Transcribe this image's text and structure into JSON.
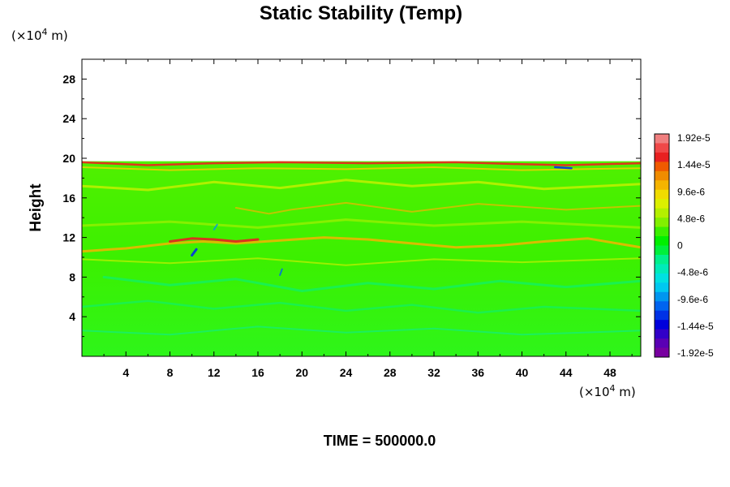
{
  "chart_data": {
    "type": "heatmap",
    "title": "Static Stability (Temp)",
    "ylabel": "Height",
    "xlabel": "",
    "x_unit_prefix": "(×10",
    "x_unit_exp": "4",
    "x_unit_suffix": " m)",
    "y_unit_prefix": "(×10",
    "y_unit_exp": "4",
    "y_unit_suffix": " m)",
    "xlim": [
      0,
      50.8
    ],
    "ylim": [
      0,
      30
    ],
    "x_ticks": [
      "4",
      "8",
      "12",
      "16",
      "20",
      "24",
      "28",
      "32",
      "36",
      "40",
      "44",
      "48"
    ],
    "y_ticks": [
      "4",
      "8",
      "12",
      "16",
      "20",
      "24",
      "28"
    ],
    "field_top": 19.7,
    "colorbar": {
      "min": -1.92e-05,
      "max": 1.92e-05,
      "labels": [
        "1.92e-5",
        "1.44e-5",
        "9.6e-6",
        "4.8e-6",
        "0",
        "-4.8e-6",
        "-9.6e-6",
        "-1.44e-5",
        "-1.92e-5"
      ],
      "colors": [
        "#f07f7f",
        "#f04848",
        "#e82020",
        "#f05a00",
        "#f08c00",
        "#f5b400",
        "#f0dc00",
        "#dcf000",
        "#b4f000",
        "#82f000",
        "#3cf000",
        "#00f000",
        "#00f03c",
        "#00f08c",
        "#00ebb9",
        "#00e1e1",
        "#00c8f0",
        "#0096f0",
        "#0064f0",
        "#0032e6",
        "#0000dc",
        "#3200c8",
        "#5a00b4",
        "#7800a0"
      ]
    }
  },
  "footer": "TIME = 500000.0"
}
